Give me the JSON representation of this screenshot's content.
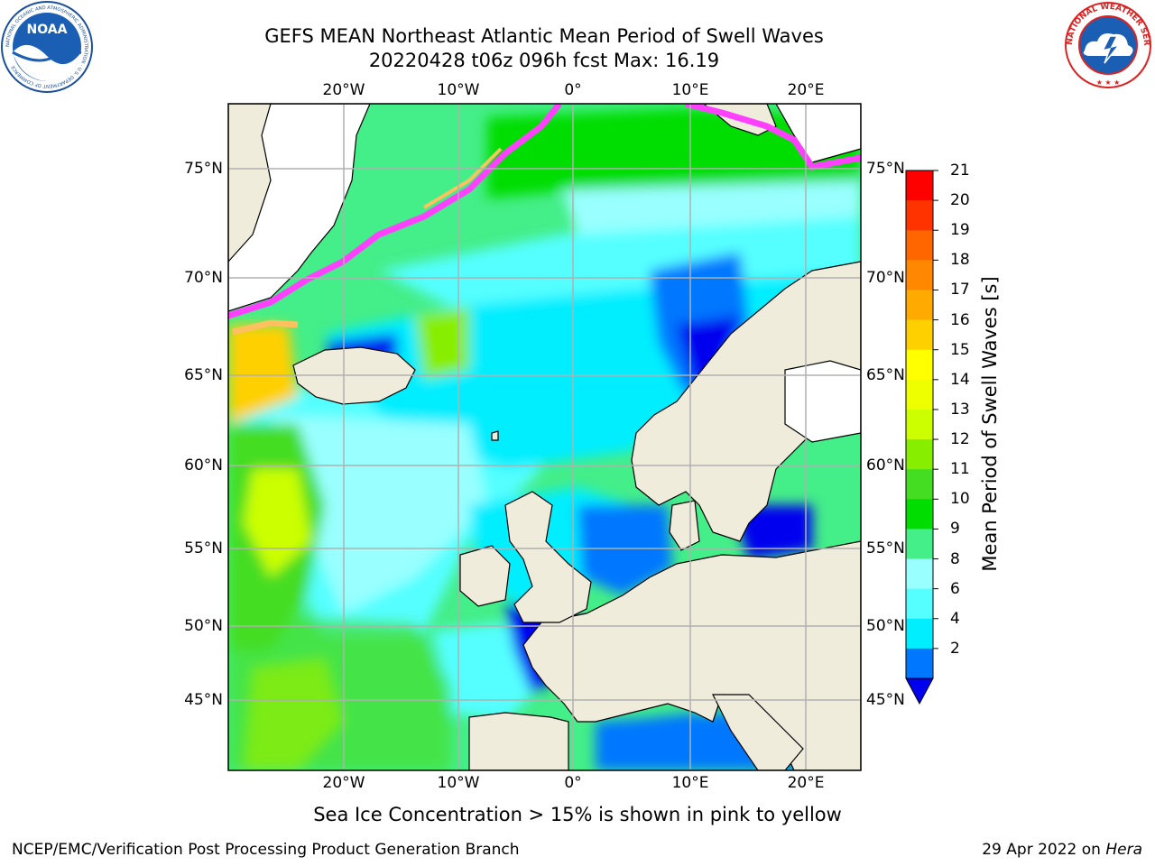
{
  "title": {
    "line1": "GEFS MEAN Northeast Atlantic Mean Period of Swell Waves",
    "line2": "20220428 t06z 096h fcst   Max: 16.19"
  },
  "logos": {
    "left": "NOAA",
    "left_ring": "NATIONAL OCEANIC AND ATMOSPHERIC ADMINISTRATION · U.S. DEPARTMENT OF COMMERCE",
    "right_ring": "NATIONAL WEATHER SERVICE"
  },
  "map": {
    "lon_labels_top": [
      "20°W",
      "10°W",
      "0°",
      "10°E",
      "20°E"
    ],
    "lon_labels_bottom": [
      "20°W",
      "10°W",
      "0°",
      "10°E",
      "20°E"
    ],
    "lat_labels_left": [
      "75°N",
      "70°N",
      "65°N",
      "60°N",
      "55°N",
      "50°N",
      "45°N"
    ],
    "lat_labels_right": [
      "75°N",
      "70°N",
      "65°N",
      "60°N",
      "55°N",
      "50°N",
      "45°N"
    ],
    "land_color": "#efecdc",
    "ice_colors": [
      "#ff40ff",
      "#ff9ae0",
      "#ffc060",
      "#ffe060"
    ]
  },
  "colorbar": {
    "label": "Mean Period of Swell Waves [s]",
    "ticks": [
      "21",
      "20",
      "19",
      "18",
      "17",
      "16",
      "15",
      "14",
      "13",
      "12",
      "11",
      "10",
      "9",
      "8",
      "6",
      "4",
      "2"
    ],
    "colors": [
      "#ff0000",
      "#ff3300",
      "#ff6600",
      "#ff8800",
      "#ffaa00",
      "#ffd000",
      "#ffff00",
      "#eeff00",
      "#ccff00",
      "#88ee00",
      "#44dd22",
      "#00dd00",
      "#44ee88",
      "#99ffff",
      "#55ffff",
      "#00eeff",
      "#0077ff"
    ],
    "under_color": "#0000ee"
  },
  "note": "Sea Ice Concentration > 15% is shown in pink to yellow",
  "footer": {
    "left": "NCEP/EMC/Verification Post Processing Product Generation Branch",
    "right_date": "29 Apr 2022 on ",
    "right_host": "Hera"
  }
}
